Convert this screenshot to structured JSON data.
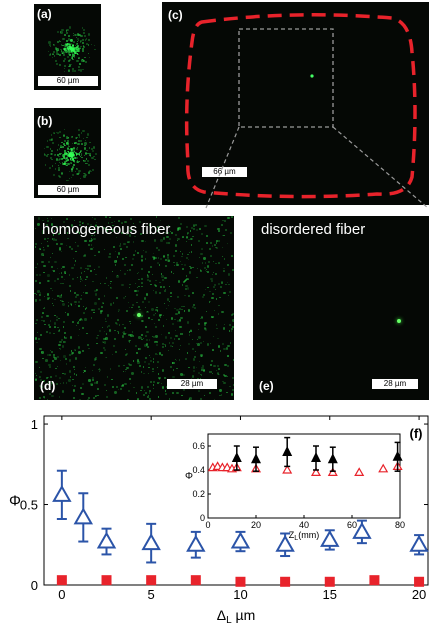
{
  "panels": {
    "a": {
      "label": "(a)",
      "scale": "60 µm"
    },
    "b": {
      "label": "(b)",
      "scale": "60 µm"
    },
    "c": {
      "label": "(c)",
      "scale": "66 µm"
    },
    "d": {
      "label": "(d)",
      "scale": "28 µm",
      "caption": "homogeneous fiber"
    },
    "e": {
      "label": "(e)",
      "scale": "28 µm",
      "caption": "disordered fiber"
    },
    "f": {
      "label": "(f)"
    }
  },
  "colors": {
    "speckle_green": "#33ff55",
    "outline_red": "#e8232b",
    "triangle_blue": "#2b54a8",
    "square_red": "#e8232b",
    "inset_black": "#000000",
    "inset_red": "#e8232b"
  },
  "chart_data": [
    {
      "type": "scatter",
      "panel": "(f)",
      "xlabel": "Δ_L µm",
      "ylabel": "Φ",
      "xlim": [
        -1,
        20.5
      ],
      "ylim": [
        0,
        1.05
      ],
      "xticks": [
        "0",
        "5",
        "10",
        "15",
        "20"
      ],
      "yticks": [
        "0",
        "0.5",
        "1"
      ],
      "series": [
        {
          "marker": "open-triangle",
          "color": "#2b54a8",
          "x": [
            0,
            1.2,
            2.5,
            5,
            7.5,
            10,
            12.5,
            15,
            16.8,
            20
          ],
          "y": [
            0.56,
            0.42,
            0.27,
            0.26,
            0.25,
            0.27,
            0.25,
            0.28,
            0.33,
            0.25
          ],
          "err": [
            0.15,
            0.15,
            0.08,
            0.12,
            0.08,
            0.06,
            0.07,
            0.06,
            0.07,
            0.06
          ]
        },
        {
          "marker": "filled-square",
          "color": "#e8232b",
          "x": [
            0,
            2.5,
            5,
            7.5,
            10,
            12.5,
            15,
            17.5,
            20
          ],
          "y": [
            0.03,
            0.03,
            0.03,
            0.03,
            0.02,
            0.02,
            0.02,
            0.03,
            0.02
          ]
        }
      ]
    },
    {
      "type": "scatter",
      "panel": "inset",
      "xlabel": "Z_L (mm)",
      "ylabel": "Φ",
      "xlim": [
        0,
        80
      ],
      "ylim": [
        0,
        0.7
      ],
      "xticks": [
        "0",
        "20",
        "40",
        "60",
        "80"
      ],
      "yticks": [
        "0",
        "0.2",
        "0.4",
        "0.6"
      ],
      "series": [
        {
          "marker": "filled-triangle",
          "color": "#000000",
          "x": [
            12,
            20,
            33,
            45,
            52,
            79
          ],
          "y": [
            0.5,
            0.49,
            0.55,
            0.5,
            0.49,
            0.51
          ],
          "err": [
            0.1,
            0.1,
            0.12,
            0.1,
            0.1,
            0.12
          ]
        },
        {
          "marker": "open-triangle",
          "color": "#e8232b",
          "x": [
            2,
            4,
            6,
            8,
            10,
            12,
            20,
            33,
            45,
            52,
            63,
            73,
            79
          ],
          "y": [
            0.42,
            0.43,
            0.42,
            0.42,
            0.41,
            0.42,
            0.41,
            0.4,
            0.38,
            0.38,
            0.38,
            0.41,
            0.43
          ]
        }
      ]
    }
  ]
}
